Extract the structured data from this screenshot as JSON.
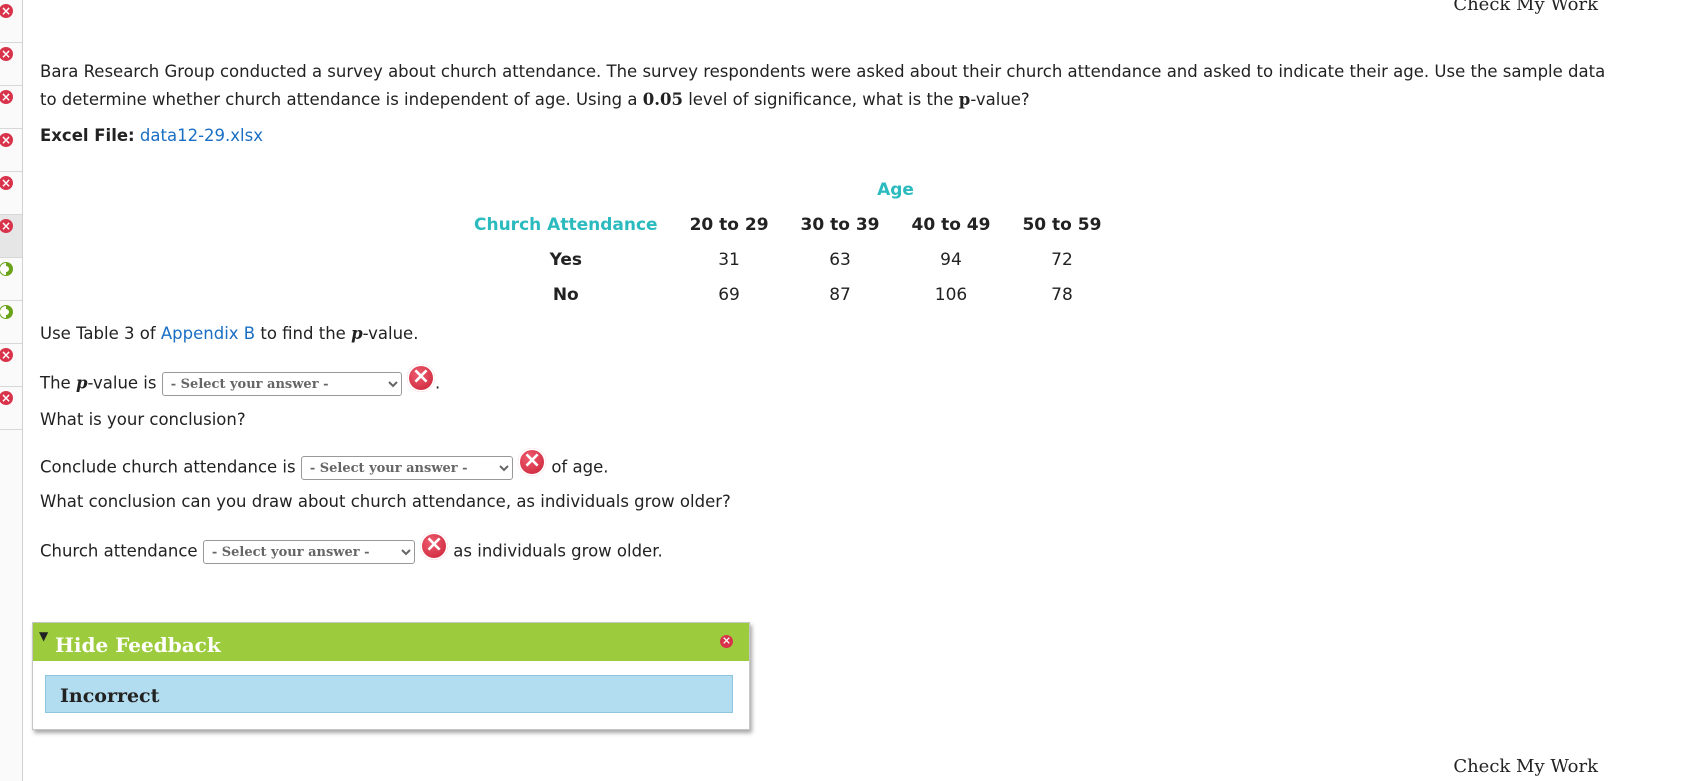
{
  "nav": {
    "check_my_work_top": "Check My Work",
    "check_my_work_bottom": "Check My Work",
    "rail_items": [
      {
        "status": "incorrect"
      },
      {
        "status": "incorrect"
      },
      {
        "status": "incorrect"
      },
      {
        "status": "incorrect"
      },
      {
        "status": "incorrect"
      },
      {
        "status": "incorrect",
        "active": true
      },
      {
        "status": "partial"
      },
      {
        "status": "partial"
      },
      {
        "status": "incorrect"
      },
      {
        "status": "incorrect"
      }
    ]
  },
  "question": {
    "text_line1": "Bara Research Group conducted a survey about church attendance. The survey respondents were asked about their church attendance and asked to indicate their age. Use the sample data",
    "text_line2a": "to determine whether church attendance is independent of age. Using a ",
    "significance": "0.05",
    "text_line2b": " level of significance, what is the ",
    "p_symbol": "p",
    "text_line2c": "-value?",
    "excel_label": "Excel File:",
    "excel_file": "data12-29.xlsx"
  },
  "table": {
    "group_header": "Age",
    "row_header": "Church Attendance",
    "columns": [
      "20 to 29",
      "30 to 39",
      "40 to 49",
      "50 to 59"
    ],
    "rows": [
      {
        "label": "Yes",
        "values": [
          "31",
          "63",
          "94",
          "72"
        ]
      },
      {
        "label": "No",
        "values": [
          "69",
          "87",
          "106",
          "78"
        ]
      }
    ]
  },
  "instructions": {
    "use_table_a": "Use Table 3 of ",
    "appendix": "Appendix B",
    "use_table_b": " to find the ",
    "p": "p",
    "use_table_c": "-value.",
    "pvalue_a": "The ",
    "pvalue_b": "-value is",
    "period": ".",
    "q2": "What is your conclusion?",
    "concl_a": "Conclude church attendance is",
    "concl_b": " of age.",
    "q3": "What conclusion can you draw about church attendance, as individuals grow older?",
    "attend_a": "Church attendance",
    "attend_b": " as individuals grow older."
  },
  "selects": {
    "placeholder": "- Select your answer -"
  },
  "feedback": {
    "toggle_label": "Hide Feedback",
    "result": "Incorrect",
    "colors": {
      "header": "#9dcb3e",
      "result_bg": "#b2dcef"
    }
  }
}
